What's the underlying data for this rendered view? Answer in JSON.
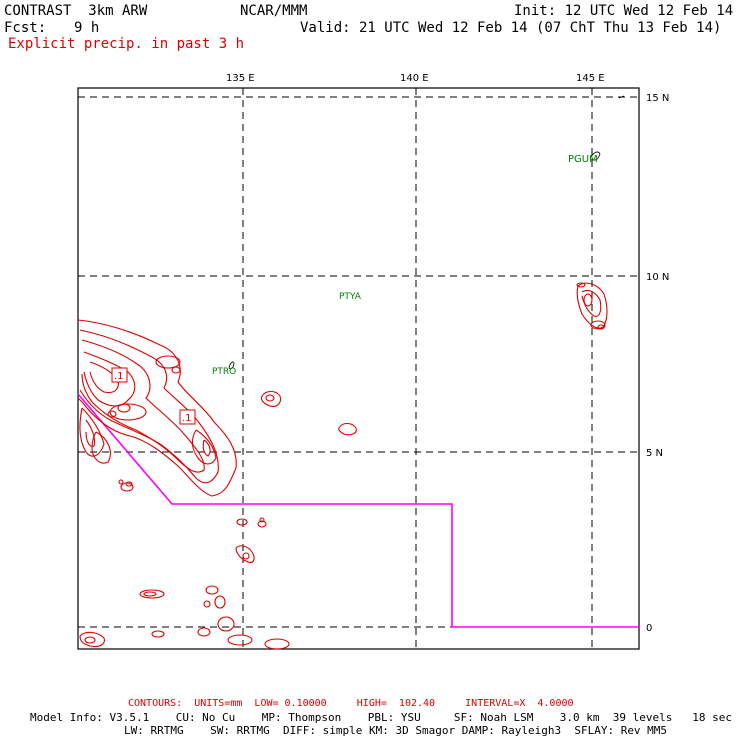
{
  "header": {
    "title": "CONTRAST  3km ARW",
    "center": "NCAR/MMM",
    "init": "Init: 12 UTC Wed 12 Feb 14",
    "fcst_label": "Fcst:",
    "fcst_value": "9 h",
    "valid": "Valid: 21 UTC Wed 12 Feb 14 (07 ChT Thu 13 Feb 14)",
    "field": "Explicit precip. in past 3 h"
  },
  "map": {
    "lon_labels": [
      "135 E",
      "140 E",
      "145 E"
    ],
    "lat_labels": [
      "15 N",
      "10 N",
      "5 N",
      "0"
    ],
    "stations": [
      "PGUM",
      "PTYA",
      "PTRO"
    ],
    "contour_labels": [
      ".1",
      ".1"
    ],
    "colors": {
      "contour": "#e00000",
      "boundary": "#ff00ff",
      "station": "#008000",
      "grid": "#000000"
    }
  },
  "footer": {
    "contours": "CONTOURS:  UNITS=mm  LOW= 0.10000     HIGH=  102.40     INTERVAL=X  4.0000",
    "model_line1": "Model Info: V3.5.1    CU: No Cu    MP: Thompson    PBL: YSU     SF: Noah LSM    3.0 km  39 levels   18 sec",
    "model_line2": "LW: RRTMG    SW: RRTMG  DIFF: simple KM: 3D Smagor DAMP: Rayleigh3  SFLAY: Rev MM5"
  }
}
